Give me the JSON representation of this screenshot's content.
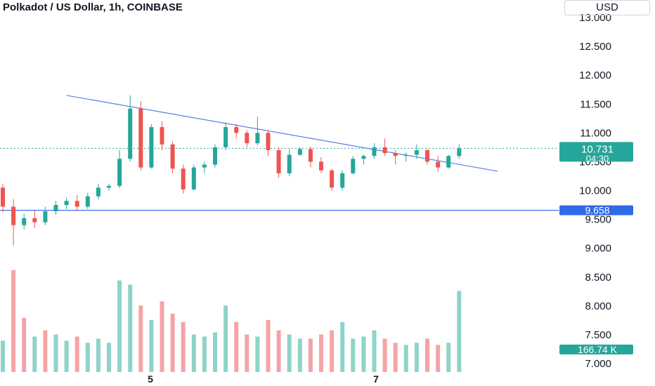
{
  "header": {
    "title": "Polkadot / US Dollar, 1h, COINBASE",
    "currency": "USD"
  },
  "price_axis": {
    "ticks": [
      "13.000",
      "12.500",
      "12.000",
      "11.500",
      "11.000",
      "10.500",
      "10.000",
      "9.500",
      "9.000",
      "8.500",
      "8.000",
      "7.500",
      "7.000"
    ]
  },
  "time_axis": {
    "ticks": [
      "5",
      "7"
    ]
  },
  "badges": {
    "last_price": "10.731",
    "countdown": "04:30",
    "horizontal_level": "9.658",
    "volume": "166.74 K"
  },
  "colors": {
    "up": "#26a69a",
    "down": "#ef5350",
    "volume_up": "#8fd3c8",
    "volume_down": "#f5a3a6",
    "trend_line": "#5b7ee8",
    "level_line": "#3d6ff0",
    "price_line": "#26a69a",
    "level_badge": "#2f6ae8"
  },
  "chart_data": {
    "type": "candlestick",
    "interval": "1h",
    "y_range": [
      7.0,
      13.0
    ],
    "horizontal_level": 9.658,
    "last_price": 10.731,
    "trendline": [
      [
        6,
        11.65
      ],
      [
        40,
        10.55
      ]
    ],
    "volume_start_price": 7.0,
    "volume_scale": 0.36,
    "ohlc": [
      [
        10.05,
        10.12,
        9.62,
        9.72
      ],
      [
        9.72,
        9.85,
        9.05,
        9.4
      ],
      [
        9.4,
        9.6,
        9.32,
        9.52
      ],
      [
        9.52,
        9.66,
        9.35,
        9.45
      ],
      [
        9.45,
        9.72,
        9.4,
        9.64
      ],
      [
        9.64,
        9.82,
        9.58,
        9.75
      ],
      [
        9.75,
        9.88,
        9.68,
        9.82
      ],
      [
        9.82,
        9.92,
        9.66,
        9.72
      ],
      [
        9.72,
        9.96,
        9.68,
        9.9
      ],
      [
        9.9,
        10.12,
        9.85,
        10.05
      ],
      [
        10.05,
        10.12,
        10.0,
        10.08
      ],
      [
        10.08,
        10.7,
        10.04,
        10.55
      ],
      [
        10.55,
        11.65,
        10.5,
        11.42
      ],
      [
        11.42,
        11.55,
        10.35,
        10.4
      ],
      [
        10.4,
        11.15,
        10.38,
        11.1
      ],
      [
        11.1,
        11.2,
        10.7,
        10.8
      ],
      [
        10.8,
        10.85,
        10.3,
        10.38
      ],
      [
        10.38,
        10.45,
        9.95,
        10.02
      ],
      [
        10.02,
        10.45,
        10.0,
        10.4
      ],
      [
        10.4,
        10.5,
        10.3,
        10.45
      ],
      [
        10.45,
        10.8,
        10.4,
        10.75
      ],
      [
        10.75,
        11.18,
        10.7,
        11.1
      ],
      [
        11.1,
        11.15,
        10.9,
        11.0
      ],
      [
        11.0,
        11.05,
        10.75,
        10.82
      ],
      [
        10.82,
        11.28,
        10.78,
        11.0
      ],
      [
        11.0,
        11.05,
        10.6,
        10.7
      ],
      [
        10.7,
        10.75,
        10.22,
        10.3
      ],
      [
        10.3,
        10.72,
        10.25,
        10.62
      ],
      [
        10.62,
        10.75,
        10.6,
        10.72
      ],
      [
        10.72,
        10.76,
        10.4,
        10.5
      ],
      [
        10.5,
        10.58,
        10.3,
        10.35
      ],
      [
        10.35,
        10.38,
        10.0,
        10.05
      ],
      [
        10.05,
        10.35,
        10.0,
        10.3
      ],
      [
        10.3,
        10.6,
        10.28,
        10.55
      ],
      [
        10.55,
        10.62,
        10.45,
        10.6
      ],
      [
        10.6,
        10.82,
        10.55,
        10.75
      ],
      [
        10.75,
        10.9,
        10.6,
        10.65
      ],
      [
        10.65,
        10.7,
        10.45,
        10.6
      ],
      [
        10.6,
        10.66,
        10.5,
        10.62
      ],
      [
        10.62,
        10.8,
        10.55,
        10.7
      ],
      [
        10.7,
        10.72,
        10.45,
        10.5
      ],
      [
        10.5,
        10.6,
        10.32,
        10.4
      ],
      [
        10.4,
        10.62,
        10.38,
        10.6
      ],
      [
        10.6,
        10.8,
        10.55,
        10.731
      ]
    ],
    "volume": [
      [
        1.1,
        0
      ],
      [
        4.5,
        1
      ],
      [
        2.2,
        1
      ],
      [
        1.3,
        0
      ],
      [
        1.6,
        1
      ],
      [
        1.4,
        0
      ],
      [
        1.1,
        0
      ],
      [
        1.3,
        1
      ],
      [
        1.0,
        0
      ],
      [
        1.2,
        0
      ],
      [
        1.0,
        0
      ],
      [
        4.0,
        0
      ],
      [
        3.8,
        0
      ],
      [
        2.8,
        1
      ],
      [
        2.1,
        0
      ],
      [
        3.0,
        1
      ],
      [
        2.4,
        1
      ],
      [
        2.0,
        1
      ],
      [
        1.4,
        0
      ],
      [
        1.3,
        0
      ],
      [
        1.5,
        0
      ],
      [
        2.8,
        0
      ],
      [
        2.0,
        1
      ],
      [
        1.4,
        1
      ],
      [
        1.3,
        0
      ],
      [
        2.1,
        1
      ],
      [
        1.6,
        1
      ],
      [
        1.4,
        0
      ],
      [
        1.2,
        0
      ],
      [
        1.2,
        1
      ],
      [
        1.4,
        1
      ],
      [
        1.6,
        1
      ],
      [
        2.0,
        0
      ],
      [
        1.2,
        0
      ],
      [
        1.3,
        0
      ],
      [
        1.6,
        0
      ],
      [
        1.2,
        1
      ],
      [
        1.0,
        1
      ],
      [
        0.9,
        0
      ],
      [
        1.0,
        0
      ],
      [
        1.2,
        1
      ],
      [
        0.9,
        1
      ],
      [
        1.0,
        0
      ],
      [
        3.5,
        0
      ]
    ]
  }
}
